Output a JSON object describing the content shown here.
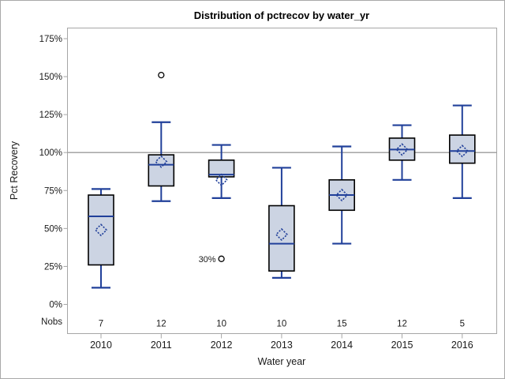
{
  "figure": {
    "title": "Distribution of pctrecov by water_yr",
    "ylabel": "Pct Recovery",
    "xlabel": "Water year",
    "nobs_label": "Nobs"
  },
  "colors": {
    "box_fill": "#ccd4e3",
    "box_border": "#000000",
    "line_blue": "#21409a",
    "reference_line": "#9b9b9b",
    "frame": "#a6a6a6",
    "outlier_stroke": "#000000",
    "text": "#1a1a1a"
  },
  "chart_data": {
    "type": "boxplot",
    "title": "Distribution of pctrecov by water_yr",
    "xlabel": "Water year",
    "ylabel": "Pct Recovery",
    "ylim": [
      0,
      175
    ],
    "yticks": [
      0,
      25,
      50,
      75,
      100,
      125,
      150,
      175
    ],
    "ytick_suffix": "%",
    "reference_line": 100,
    "grid": false,
    "mean_marker": "open-diamond",
    "categories": [
      "2010",
      "2011",
      "2012",
      "2013",
      "2014",
      "2015",
      "2016"
    ],
    "nobs": [
      7,
      12,
      10,
      10,
      15,
      12,
      5
    ],
    "series": [
      {
        "category": "2010",
        "nobs": 7,
        "whisker_low": 11,
        "q1": 26,
        "median": 58,
        "mean": 49,
        "q3": 72,
        "whisker_high": 76,
        "outliers": []
      },
      {
        "category": "2011",
        "nobs": 12,
        "whisker_low": 68,
        "q1": 78,
        "median": 92,
        "mean": 94,
        "q3": 98.5,
        "whisker_high": 120,
        "outliers": [
          {
            "value": 151,
            "label": ""
          }
        ]
      },
      {
        "category": "2012",
        "nobs": 10,
        "whisker_low": 70,
        "q1": 84,
        "median": 85.5,
        "mean": 82,
        "q3": 95,
        "whisker_high": 105,
        "outliers": [
          {
            "value": 30,
            "label": "30%"
          }
        ]
      },
      {
        "category": "2013",
        "nobs": 10,
        "whisker_low": 17.5,
        "q1": 22,
        "median": 40,
        "mean": 46,
        "q3": 65,
        "whisker_high": 90,
        "outliers": []
      },
      {
        "category": "2014",
        "nobs": 15,
        "whisker_low": 40,
        "q1": 62,
        "median": 72,
        "mean": 72,
        "q3": 82,
        "whisker_high": 104,
        "outliers": []
      },
      {
        "category": "2015",
        "nobs": 12,
        "whisker_low": 82,
        "q1": 95,
        "median": 102,
        "mean": 102,
        "q3": 109.5,
        "whisker_high": 118,
        "outliers": []
      },
      {
        "category": "2016",
        "nobs": 5,
        "whisker_low": 70,
        "q1": 93,
        "median": 101,
        "mean": 101,
        "q3": 111.5,
        "whisker_high": 131,
        "outliers": []
      }
    ]
  }
}
